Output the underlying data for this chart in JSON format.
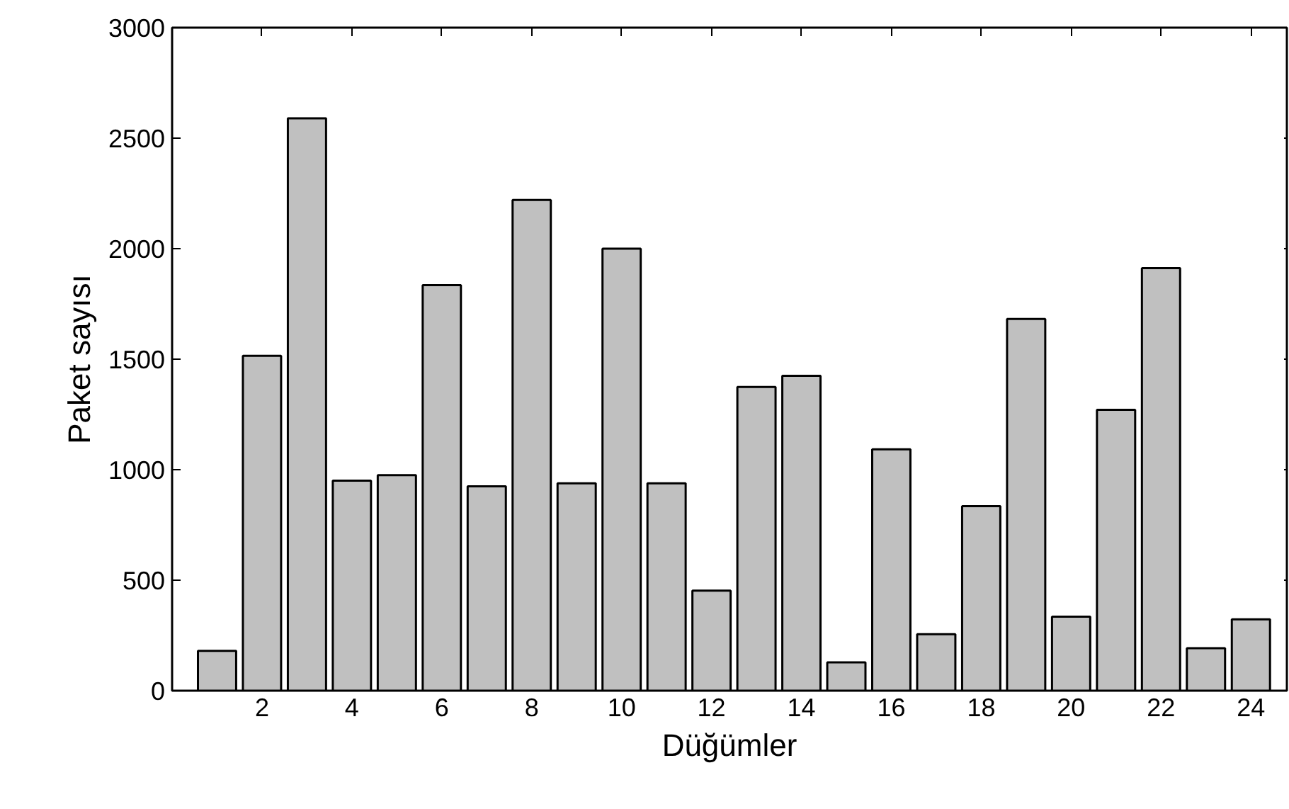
{
  "chart_data": {
    "type": "bar",
    "xlabel": "Düğümler",
    "ylabel": "Paket sayısı",
    "x": [
      1,
      2,
      3,
      4,
      5,
      6,
      7,
      8,
      9,
      10,
      11,
      12,
      13,
      14,
      15,
      16,
      17,
      18,
      19,
      20,
      21,
      22,
      23,
      24
    ],
    "values": [
      180,
      1515,
      2590,
      950,
      975,
      1835,
      925,
      2220,
      938,
      2000,
      938,
      453,
      1374,
      1425,
      128,
      1092,
      256,
      835,
      1682,
      335,
      1271,
      1912,
      192,
      323
    ],
    "color": "#c0c0c0",
    "xlim": [
      0,
      24.8
    ],
    "xticks": [
      2,
      4,
      6,
      8,
      10,
      12,
      14,
      16,
      18,
      20,
      22,
      24
    ],
    "ylim": [
      0,
      3000
    ],
    "yticks": [
      0,
      500,
      1000,
      1500,
      2000,
      2500,
      3000
    ],
    "grid": false
  }
}
